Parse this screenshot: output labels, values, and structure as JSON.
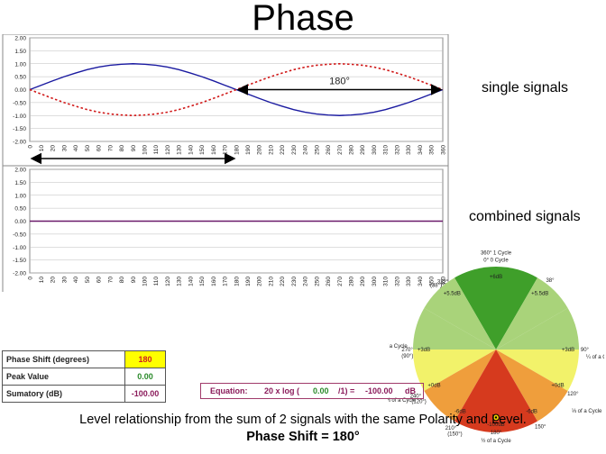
{
  "title": "Phase",
  "labels": {
    "single": "single signals",
    "combined": "combined signals"
  },
  "colors": {
    "signal_a": "#1a1aa0",
    "signal_b": "#d01818",
    "combined": "#6a1a6a",
    "highlight": "#ffff00",
    "green_value": "#2a8a2a",
    "purple_value": "#8a1a5a"
  },
  "chart_data": [
    {
      "type": "line",
      "ylim": [
        -2.0,
        2.0
      ],
      "yticks": [
        "2.00",
        "1.50",
        "1.00",
        "0.50",
        "0.00",
        "-0.50",
        "-1.00",
        "-1.50",
        "-2.00"
      ],
      "xticks": [
        "0",
        "10",
        "20",
        "30",
        "40",
        "50",
        "60",
        "70",
        "80",
        "90",
        "100",
        "110",
        "120",
        "130",
        "140",
        "150",
        "160",
        "170",
        "180",
        "190",
        "200",
        "210",
        "220",
        "230",
        "240",
        "250",
        "260",
        "270",
        "280",
        "290",
        "300",
        "310",
        "320",
        "330",
        "340",
        "350",
        "360"
      ],
      "xlim": [
        0,
        360
      ],
      "series": [
        {
          "style": "solid",
          "color": "#1a1aa0",
          "x": [
            0,
            10,
            20,
            30,
            40,
            50,
            60,
            70,
            80,
            90,
            100,
            110,
            120,
            130,
            140,
            150,
            160,
            170,
            180,
            190,
            200,
            210,
            220,
            230,
            240,
            250,
            260,
            270,
            280,
            290,
            300,
            310,
            320,
            330,
            340,
            350,
            360
          ],
          "y": [
            0,
            0.17,
            0.34,
            0.5,
            0.64,
            0.77,
            0.87,
            0.94,
            0.98,
            1,
            0.98,
            0.94,
            0.87,
            0.77,
            0.64,
            0.5,
            0.34,
            0.17,
            0,
            -0.17,
            -0.34,
            -0.5,
            -0.64,
            -0.77,
            -0.87,
            -0.94,
            -0.98,
            -1,
            -0.98,
            -0.94,
            -0.87,
            -0.77,
            -0.64,
            -0.5,
            -0.34,
            -0.17,
            0
          ]
        },
        {
          "style": "dashed",
          "color": "#d01818",
          "x": [
            0,
            10,
            20,
            30,
            40,
            50,
            60,
            70,
            80,
            90,
            100,
            110,
            120,
            130,
            140,
            150,
            160,
            170,
            180,
            190,
            200,
            210,
            220,
            230,
            240,
            250,
            260,
            270,
            280,
            290,
            300,
            310,
            320,
            330,
            340,
            350,
            360
          ],
          "y": [
            0,
            -0.17,
            -0.34,
            -0.5,
            -0.64,
            -0.77,
            -0.87,
            -0.94,
            -0.98,
            -1,
            -0.98,
            -0.94,
            -0.87,
            -0.77,
            -0.64,
            -0.5,
            -0.34,
            -0.17,
            0,
            0.17,
            0.34,
            0.5,
            0.64,
            0.77,
            0.87,
            0.94,
            0.98,
            1,
            0.98,
            0.94,
            0.87,
            0.77,
            0.64,
            0.5,
            0.34,
            0.17,
            0
          ]
        }
      ],
      "annotation": {
        "text": "180°",
        "from_x": 180,
        "to_x": 360,
        "y": 0
      },
      "below_arrow": {
        "from_x": 0,
        "to_x": 180
      }
    },
    {
      "type": "line",
      "ylim": [
        -2.0,
        2.0
      ],
      "yticks": [
        "2.00",
        "1.50",
        "1.00",
        "0.50",
        "0.00",
        "-0.50",
        "-1.00",
        "-1.50",
        "-2.00"
      ],
      "xticks": [
        "0",
        "10",
        "20",
        "30",
        "40",
        "50",
        "60",
        "70",
        "80",
        "90",
        "100",
        "110",
        "120",
        "130",
        "140",
        "150",
        "160",
        "170",
        "180",
        "190",
        "200",
        "210",
        "220",
        "230",
        "240",
        "250",
        "260",
        "270",
        "280",
        "290",
        "300",
        "310",
        "320",
        "330",
        "340",
        "350",
        "360"
      ],
      "xlim": [
        0,
        360
      ],
      "series": [
        {
          "style": "solid",
          "color": "#6a1a6a",
          "x": [
            0,
            360
          ],
          "y": [
            0,
            0
          ]
        }
      ]
    }
  ],
  "wheel": {
    "labels": [
      {
        "text": "360° 1 Cycle",
        "angle": 0,
        "r": 1.17
      },
      {
        "text": "0° 0 Cycle",
        "angle": 0,
        "r": 1.08
      },
      {
        "text": "+6dB",
        "angle": 0,
        "r": 0.88
      },
      {
        "text": "(38°)",
        "angle": -43,
        "r": 1.06
      },
      {
        "text": "322°",
        "angle": -38,
        "r": 1.04
      },
      {
        "text": "+5.5dB",
        "angle": -38,
        "r": 0.86
      },
      {
        "text": "38°",
        "angle": 38,
        "r": 1.06
      },
      {
        "text": "+5.5dB",
        "angle": 38,
        "r": 0.86
      },
      {
        "text": "¾ of a Cycle",
        "angle": -88,
        "r": 1.25
      },
      {
        "text": "270°",
        "angle": -90,
        "r": 1.07
      },
      {
        "text": "(90°)",
        "angle": -94,
        "r": 1.07
      },
      {
        "text": "+3dB",
        "angle": -90,
        "r": 0.87
      },
      {
        "text": "90°",
        "angle": 90,
        "r": 1.07
      },
      {
        "text": "¼ of a Cycle",
        "angle": 94,
        "r": 1.27
      },
      {
        "text": "+3dB",
        "angle": 90,
        "r": 0.87
      },
      {
        "text": "⅔ of a Cycle",
        "angle": -118,
        "r": 1.3
      },
      {
        "text": "240°",
        "angle": -120,
        "r": 1.12
      },
      {
        "text": "(120°)",
        "angle": -124,
        "r": 1.12
      },
      {
        "text": "+0dB",
        "angle": -120,
        "r": 0.86
      },
      {
        "text": "120°",
        "angle": 120,
        "r": 1.07
      },
      {
        "text": "⅓ of a Cycle",
        "angle": 124,
        "r": 1.32
      },
      {
        "text": "+0dB",
        "angle": 120,
        "r": 0.86
      },
      {
        "text": "210°",
        "angle": -150,
        "r": 1.09
      },
      {
        "text": "(150°)",
        "angle": -154,
        "r": 1.13
      },
      {
        "text": "-6dB",
        "angle": -150,
        "r": 0.86
      },
      {
        "text": "150°",
        "angle": 150,
        "r": 1.07
      },
      {
        "text": "-6dB",
        "angle": 150,
        "r": 0.86
      },
      {
        "text": "-100dB",
        "angle": 180,
        "r": 0.9
      },
      {
        "text": "180°",
        "angle": 180,
        "r": 1.0
      },
      {
        "text": "½ of a Cycle",
        "angle": 180,
        "r": 1.1
      }
    ],
    "marker_angle": 180
  },
  "info_table": {
    "rows": [
      {
        "label": "Phase Shift (degrees)",
        "value": "180"
      },
      {
        "label": "Peak Value",
        "value": "0.00"
      },
      {
        "label": "Sumatory (dB)",
        "value": "-100.00"
      }
    ]
  },
  "equation": {
    "prefix": "Equation:",
    "formula": "20 x log (",
    "arg": "0.00",
    "divisor": "/1) =",
    "result": "-100.00",
    "unit": "dB"
  },
  "caption": "Level relationship from the sum of 2 signals with the same Polarity and Level.",
  "caption_bold": "Phase Shift = 180°"
}
